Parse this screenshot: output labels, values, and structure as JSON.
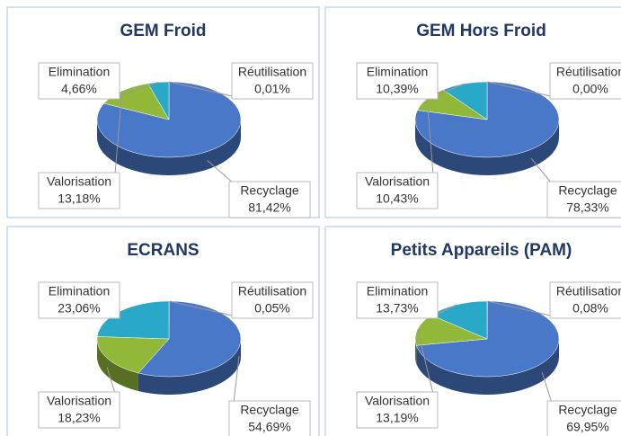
{
  "chart_data": [
    {
      "type": "pie",
      "title": "GEM Froid",
      "categories": [
        "Réutilisation",
        "Recyclage",
        "Valorisation",
        "Elimination"
      ],
      "values": [
        0.01,
        81.42,
        13.18,
        4.66
      ],
      "value_labels": [
        "0,01%",
        "81,42%",
        "13,18%",
        "4,66%"
      ],
      "colors": [
        "#8064a2",
        "#4a78c8",
        "#92b83a",
        "#2aa8c8"
      ]
    },
    {
      "type": "pie",
      "title": "GEM Hors Froid",
      "categories": [
        "Réutilisation",
        "Recyclage",
        "Valorisation",
        "Elimination"
      ],
      "values": [
        0.0,
        78.33,
        10.43,
        10.39
      ],
      "value_labels": [
        "0,00%",
        "78,33%",
        "10,43%",
        "10,39%"
      ],
      "colors": [
        "#8064a2",
        "#4a78c8",
        "#92b83a",
        "#2aa8c8"
      ]
    },
    {
      "type": "pie",
      "title": "ECRANS",
      "categories": [
        "Réutilisation",
        "Recyclage",
        "Valorisation",
        "Elimination"
      ],
      "values": [
        0.05,
        54.69,
        18.23,
        23.06
      ],
      "value_labels": [
        "0,05%",
        "54,69%",
        "18,23%",
        "23,06%"
      ],
      "colors": [
        "#8064a2",
        "#4a78c8",
        "#92b83a",
        "#2aa8c8"
      ]
    },
    {
      "type": "pie",
      "title": "Petits Appareils (PAM)",
      "categories": [
        "Réutilisation",
        "Recyclage",
        "Valorisation",
        "Elimination"
      ],
      "values": [
        0.08,
        69.95,
        13.19,
        13.73
      ],
      "value_labels": [
        "0,08%",
        "69,95%",
        "13,19%",
        "13,73%"
      ],
      "colors": [
        "#8064a2",
        "#4a78c8",
        "#92b83a",
        "#2aa8c8"
      ]
    }
  ]
}
